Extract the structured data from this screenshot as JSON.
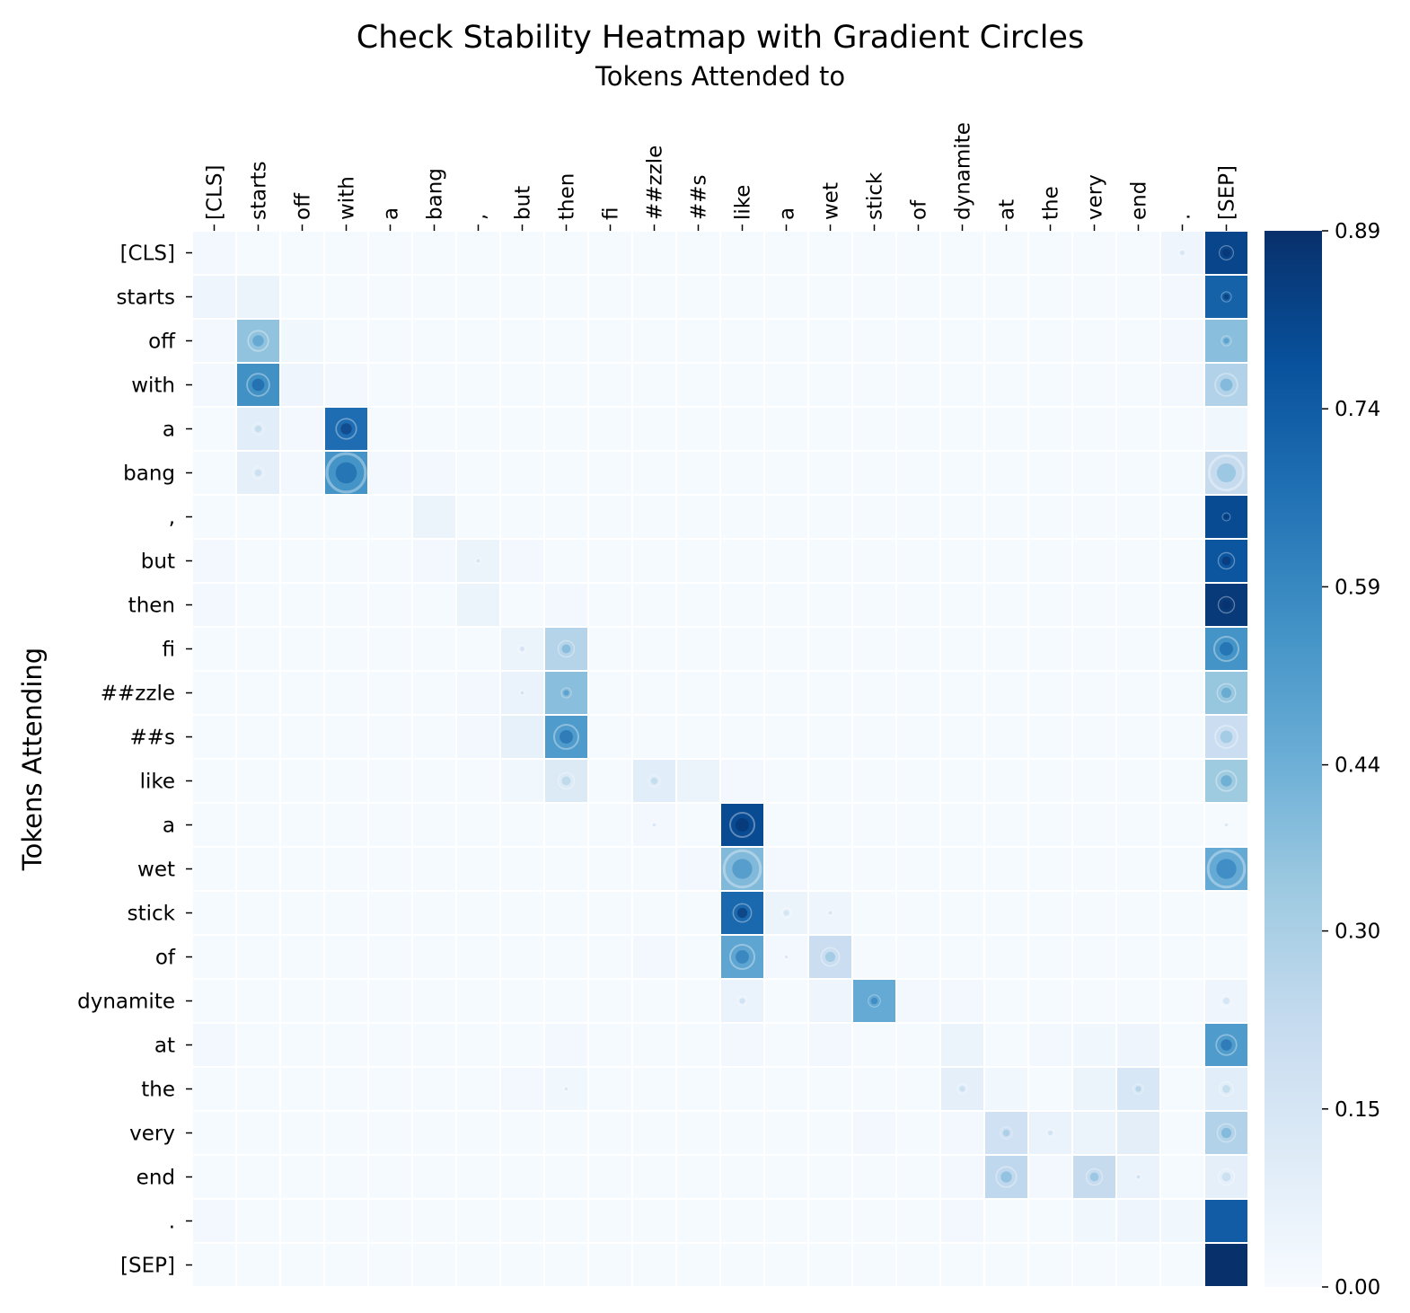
{
  "chart_data": {
    "type": "heatmap",
    "title": "Check Stability Heatmap with Gradient Circles",
    "xlabel": "Tokens Attended to",
    "ylabel": "Tokens Attending",
    "x_tokens": [
      "[CLS]",
      "starts",
      "off",
      "with",
      "a",
      "bang",
      ",",
      "but",
      "then",
      "fi",
      "##zzle",
      "##s",
      "like",
      "a",
      "wet",
      "stick",
      "of",
      "dynamite",
      "at",
      "the",
      "very",
      "end",
      ".",
      "[SEP]"
    ],
    "y_tokens": [
      "[CLS]",
      "starts",
      "off",
      "with",
      "a",
      "bang",
      ",",
      "but",
      "then",
      "fi",
      "##zzle",
      "##s",
      "like",
      "a",
      "wet",
      "stick",
      "of",
      "dynamite",
      "at",
      "the",
      "very",
      "end",
      ".",
      "[SEP]"
    ],
    "colormap": "Blues",
    "vmin": 0.0,
    "vmax": 0.89,
    "colorbar_ticks": [
      "0.00",
      "0.15",
      "0.30",
      "0.44",
      "0.59",
      "0.74",
      "0.89"
    ],
    "colorbar_tick_values": [
      0.0,
      0.15,
      0.3,
      0.44,
      0.59,
      0.74,
      0.89
    ],
    "circles_note": "Gradient circles drawn on cells; size reflects gradient magnitude",
    "values": [
      [
        0.02,
        0.01,
        0.01,
        0.01,
        0.01,
        0.01,
        0.01,
        0.01,
        0.01,
        0.01,
        0.01,
        0.01,
        0.01,
        0.01,
        0.01,
        0.01,
        0.01,
        0.01,
        0.01,
        0.01,
        0.01,
        0.01,
        0.04,
        0.82
      ],
      [
        0.04,
        0.05,
        0.01,
        0.01,
        0.01,
        0.01,
        0.01,
        0.01,
        0.01,
        0.01,
        0.01,
        0.01,
        0.01,
        0.01,
        0.01,
        0.01,
        0.01,
        0.01,
        0.01,
        0.01,
        0.01,
        0.01,
        0.02,
        0.72
      ],
      [
        0.02,
        0.36,
        0.03,
        0.01,
        0.01,
        0.01,
        0.01,
        0.01,
        0.01,
        0.01,
        0.01,
        0.01,
        0.01,
        0.01,
        0.01,
        0.01,
        0.01,
        0.01,
        0.01,
        0.01,
        0.01,
        0.01,
        0.02,
        0.38
      ],
      [
        0.02,
        0.56,
        0.04,
        0.02,
        0.01,
        0.01,
        0.01,
        0.01,
        0.01,
        0.01,
        0.01,
        0.01,
        0.01,
        0.01,
        0.01,
        0.01,
        0.01,
        0.01,
        0.01,
        0.01,
        0.01,
        0.01,
        0.02,
        0.28
      ],
      [
        0.01,
        0.1,
        0.02,
        0.68,
        0.01,
        0.01,
        0.01,
        0.01,
        0.01,
        0.01,
        0.01,
        0.01,
        0.01,
        0.01,
        0.01,
        0.01,
        0.01,
        0.01,
        0.01,
        0.01,
        0.01,
        0.01,
        0.01,
        0.03
      ],
      [
        0.01,
        0.08,
        0.02,
        0.55,
        0.02,
        0.02,
        0.01,
        0.01,
        0.01,
        0.01,
        0.01,
        0.01,
        0.01,
        0.01,
        0.01,
        0.01,
        0.01,
        0.01,
        0.01,
        0.01,
        0.01,
        0.01,
        0.01,
        0.22
      ],
      [
        0.01,
        0.01,
        0.01,
        0.01,
        0.01,
        0.05,
        0.01,
        0.01,
        0.01,
        0.01,
        0.01,
        0.01,
        0.01,
        0.01,
        0.01,
        0.01,
        0.01,
        0.01,
        0.01,
        0.01,
        0.01,
        0.01,
        0.01,
        0.8
      ],
      [
        0.02,
        0.01,
        0.01,
        0.01,
        0.01,
        0.02,
        0.05,
        0.02,
        0.01,
        0.01,
        0.01,
        0.01,
        0.01,
        0.01,
        0.01,
        0.01,
        0.01,
        0.01,
        0.01,
        0.01,
        0.01,
        0.01,
        0.01,
        0.76
      ],
      [
        0.02,
        0.01,
        0.01,
        0.01,
        0.01,
        0.01,
        0.05,
        0.01,
        0.02,
        0.01,
        0.01,
        0.01,
        0.01,
        0.01,
        0.01,
        0.01,
        0.01,
        0.01,
        0.01,
        0.01,
        0.01,
        0.01,
        0.01,
        0.86
      ],
      [
        0.01,
        0.01,
        0.01,
        0.01,
        0.01,
        0.01,
        0.01,
        0.05,
        0.27,
        0.01,
        0.01,
        0.01,
        0.01,
        0.01,
        0.01,
        0.01,
        0.01,
        0.01,
        0.01,
        0.01,
        0.01,
        0.01,
        0.01,
        0.55
      ],
      [
        0.01,
        0.01,
        0.01,
        0.01,
        0.01,
        0.01,
        0.02,
        0.06,
        0.38,
        0.01,
        0.01,
        0.01,
        0.01,
        0.01,
        0.01,
        0.01,
        0.01,
        0.01,
        0.01,
        0.01,
        0.01,
        0.01,
        0.01,
        0.35
      ],
      [
        0.01,
        0.01,
        0.01,
        0.01,
        0.01,
        0.01,
        0.02,
        0.07,
        0.52,
        0.01,
        0.01,
        0.01,
        0.01,
        0.01,
        0.01,
        0.01,
        0.01,
        0.01,
        0.01,
        0.01,
        0.01,
        0.01,
        0.01,
        0.2
      ],
      [
        0.01,
        0.01,
        0.01,
        0.01,
        0.01,
        0.01,
        0.01,
        0.03,
        0.12,
        0.01,
        0.1,
        0.05,
        0.02,
        0.01,
        0.01,
        0.01,
        0.01,
        0.01,
        0.01,
        0.01,
        0.01,
        0.01,
        0.01,
        0.33
      ],
      [
        0.01,
        0.01,
        0.01,
        0.01,
        0.01,
        0.01,
        0.01,
        0.01,
        0.01,
        0.01,
        0.02,
        0.01,
        0.8,
        0.01,
        0.01,
        0.01,
        0.01,
        0.01,
        0.01,
        0.01,
        0.01,
        0.01,
        0.01,
        0.01
      ],
      [
        0.01,
        0.01,
        0.01,
        0.01,
        0.01,
        0.01,
        0.01,
        0.01,
        0.01,
        0.01,
        0.01,
        0.02,
        0.4,
        0.02,
        0.01,
        0.01,
        0.01,
        0.01,
        0.01,
        0.01,
        0.01,
        0.01,
        0.01,
        0.46
      ],
      [
        0.01,
        0.01,
        0.01,
        0.01,
        0.01,
        0.01,
        0.01,
        0.01,
        0.01,
        0.01,
        0.01,
        0.01,
        0.7,
        0.05,
        0.04,
        0.01,
        0.01,
        0.01,
        0.01,
        0.01,
        0.01,
        0.01,
        0.01,
        0.01
      ],
      [
        0.01,
        0.01,
        0.01,
        0.01,
        0.01,
        0.01,
        0.01,
        0.01,
        0.01,
        0.01,
        0.02,
        0.01,
        0.48,
        0.02,
        0.2,
        0.01,
        0.01,
        0.01,
        0.01,
        0.01,
        0.01,
        0.01,
        0.01,
        0.01
      ],
      [
        0.01,
        0.01,
        0.01,
        0.01,
        0.01,
        0.01,
        0.01,
        0.01,
        0.01,
        0.01,
        0.01,
        0.01,
        0.06,
        0.01,
        0.04,
        0.46,
        0.02,
        0.02,
        0.01,
        0.01,
        0.01,
        0.01,
        0.01,
        0.04
      ],
      [
        0.02,
        0.01,
        0.01,
        0.01,
        0.01,
        0.01,
        0.01,
        0.01,
        0.02,
        0.01,
        0.01,
        0.01,
        0.02,
        0.01,
        0.02,
        0.01,
        0.01,
        0.05,
        0.01,
        0.02,
        0.03,
        0.04,
        0.01,
        0.52
      ],
      [
        0.01,
        0.01,
        0.01,
        0.01,
        0.01,
        0.01,
        0.01,
        0.02,
        0.03,
        0.01,
        0.01,
        0.01,
        0.01,
        0.01,
        0.01,
        0.01,
        0.01,
        0.08,
        0.03,
        0.01,
        0.05,
        0.14,
        0.01,
        0.1
      ],
      [
        0.01,
        0.01,
        0.01,
        0.01,
        0.01,
        0.01,
        0.01,
        0.01,
        0.01,
        0.01,
        0.01,
        0.01,
        0.01,
        0.01,
        0.01,
        0.02,
        0.01,
        0.02,
        0.18,
        0.06,
        0.05,
        0.09,
        0.01,
        0.28
      ],
      [
        0.01,
        0.01,
        0.01,
        0.01,
        0.01,
        0.01,
        0.01,
        0.01,
        0.01,
        0.01,
        0.01,
        0.01,
        0.01,
        0.01,
        0.01,
        0.01,
        0.01,
        0.02,
        0.24,
        0.02,
        0.22,
        0.06,
        0.01,
        0.08
      ],
      [
        0.02,
        0.01,
        0.01,
        0.01,
        0.01,
        0.01,
        0.01,
        0.01,
        0.01,
        0.01,
        0.01,
        0.01,
        0.01,
        0.01,
        0.01,
        0.01,
        0.01,
        0.02,
        0.01,
        0.01,
        0.03,
        0.04,
        0.03,
        0.74
      ],
      [
        0.01,
        0.01,
        0.01,
        0.01,
        0.01,
        0.01,
        0.01,
        0.01,
        0.01,
        0.01,
        0.01,
        0.01,
        0.01,
        0.01,
        0.01,
        0.01,
        0.01,
        0.01,
        0.01,
        0.01,
        0.01,
        0.01,
        0.01,
        0.89
      ]
    ],
    "circles": [
      {
        "row": 0,
        "col": 22,
        "size": 0.2
      },
      {
        "row": 0,
        "col": 23,
        "size": 0.35
      },
      {
        "row": 1,
        "col": 23,
        "size": 0.25
      },
      {
        "row": 2,
        "col": 1,
        "size": 0.5
      },
      {
        "row": 2,
        "col": 23,
        "size": 0.25
      },
      {
        "row": 3,
        "col": 1,
        "size": 0.55
      },
      {
        "row": 3,
        "col": 23,
        "size": 0.55
      },
      {
        "row": 4,
        "col": 1,
        "size": 0.3
      },
      {
        "row": 4,
        "col": 3,
        "size": 0.5
      },
      {
        "row": 5,
        "col": 1,
        "size": 0.3
      },
      {
        "row": 5,
        "col": 3,
        "size": 0.95
      },
      {
        "row": 5,
        "col": 23,
        "size": 0.85
      },
      {
        "row": 6,
        "col": 23,
        "size": 0.2
      },
      {
        "row": 7,
        "col": 6,
        "size": 0.15
      },
      {
        "row": 7,
        "col": 23,
        "size": 0.4
      },
      {
        "row": 8,
        "col": 23,
        "size": 0.4
      },
      {
        "row": 9,
        "col": 7,
        "size": 0.2
      },
      {
        "row": 9,
        "col": 8,
        "size": 0.4
      },
      {
        "row": 9,
        "col": 23,
        "size": 0.6
      },
      {
        "row": 10,
        "col": 7,
        "size": 0.1
      },
      {
        "row": 10,
        "col": 8,
        "size": 0.25
      },
      {
        "row": 10,
        "col": 23,
        "size": 0.45
      },
      {
        "row": 11,
        "col": 8,
        "size": 0.6
      },
      {
        "row": 11,
        "col": 23,
        "size": 0.55
      },
      {
        "row": 12,
        "col": 8,
        "size": 0.4
      },
      {
        "row": 12,
        "col": 10,
        "size": 0.3
      },
      {
        "row": 12,
        "col": 23,
        "size": 0.5
      },
      {
        "row": 13,
        "col": 10,
        "size": 0.15
      },
      {
        "row": 13,
        "col": 12,
        "size": 0.6
      },
      {
        "row": 13,
        "col": 23,
        "size": 0.15
      },
      {
        "row": 14,
        "col": 12,
        "size": 0.9
      },
      {
        "row": 14,
        "col": 23,
        "size": 0.9
      },
      {
        "row": 15,
        "col": 12,
        "size": 0.45
      },
      {
        "row": 15,
        "col": 13,
        "size": 0.25
      },
      {
        "row": 15,
        "col": 14,
        "size": 0.15
      },
      {
        "row": 16,
        "col": 12,
        "size": 0.6
      },
      {
        "row": 16,
        "col": 13,
        "size": 0.1
      },
      {
        "row": 16,
        "col": 14,
        "size": 0.45
      },
      {
        "row": 17,
        "col": 12,
        "size": 0.25
      },
      {
        "row": 17,
        "col": 15,
        "size": 0.3
      },
      {
        "row": 17,
        "col": 23,
        "size": 0.3
      },
      {
        "row": 18,
        "col": 23,
        "size": 0.5
      },
      {
        "row": 19,
        "col": 8,
        "size": 0.1
      },
      {
        "row": 19,
        "col": 17,
        "size": 0.25
      },
      {
        "row": 19,
        "col": 21,
        "size": 0.25
      },
      {
        "row": 19,
        "col": 23,
        "size": 0.35
      },
      {
        "row": 20,
        "col": 18,
        "size": 0.3
      },
      {
        "row": 20,
        "col": 19,
        "size": 0.2
      },
      {
        "row": 20,
        "col": 23,
        "size": 0.45
      },
      {
        "row": 21,
        "col": 18,
        "size": 0.5
      },
      {
        "row": 21,
        "col": 20,
        "size": 0.4
      },
      {
        "row": 21,
        "col": 21,
        "size": 0.15
      },
      {
        "row": 21,
        "col": 23,
        "size": 0.4
      }
    ]
  }
}
